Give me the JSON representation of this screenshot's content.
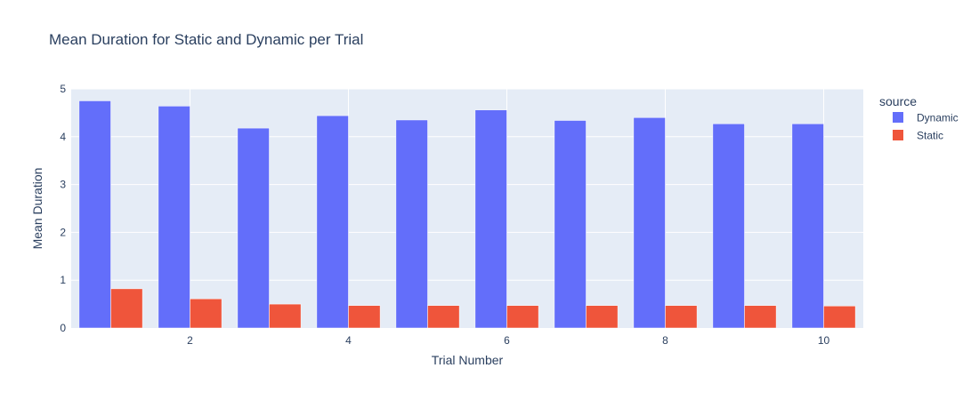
{
  "chart_data": {
    "type": "bar",
    "title": "Mean Duration for Static and Dynamic per Trial",
    "xlabel": "Trial Number",
    "ylabel": "Mean Duration",
    "x": [
      1,
      2,
      3,
      4,
      5,
      6,
      7,
      8,
      9,
      10
    ],
    "x_ticks": [
      2,
      4,
      6,
      8,
      10
    ],
    "ylim": [
      0,
      5
    ],
    "y_ticks": [
      0,
      1,
      2,
      3,
      4,
      5
    ],
    "grid": true,
    "barmode": "group",
    "plot_background": "#e5ecf6",
    "legend": {
      "title": "source",
      "placement": "top-right"
    },
    "series": [
      {
        "name": "Dynamic",
        "color": "#636efa",
        "values": [
          4.75,
          4.64,
          4.18,
          4.44,
          4.35,
          4.56,
          4.34,
          4.4,
          4.27,
          4.27
        ]
      },
      {
        "name": "Static",
        "color": "#ef553b",
        "values": [
          0.82,
          0.61,
          0.5,
          0.47,
          0.47,
          0.47,
          0.47,
          0.47,
          0.47,
          0.46
        ]
      }
    ]
  }
}
